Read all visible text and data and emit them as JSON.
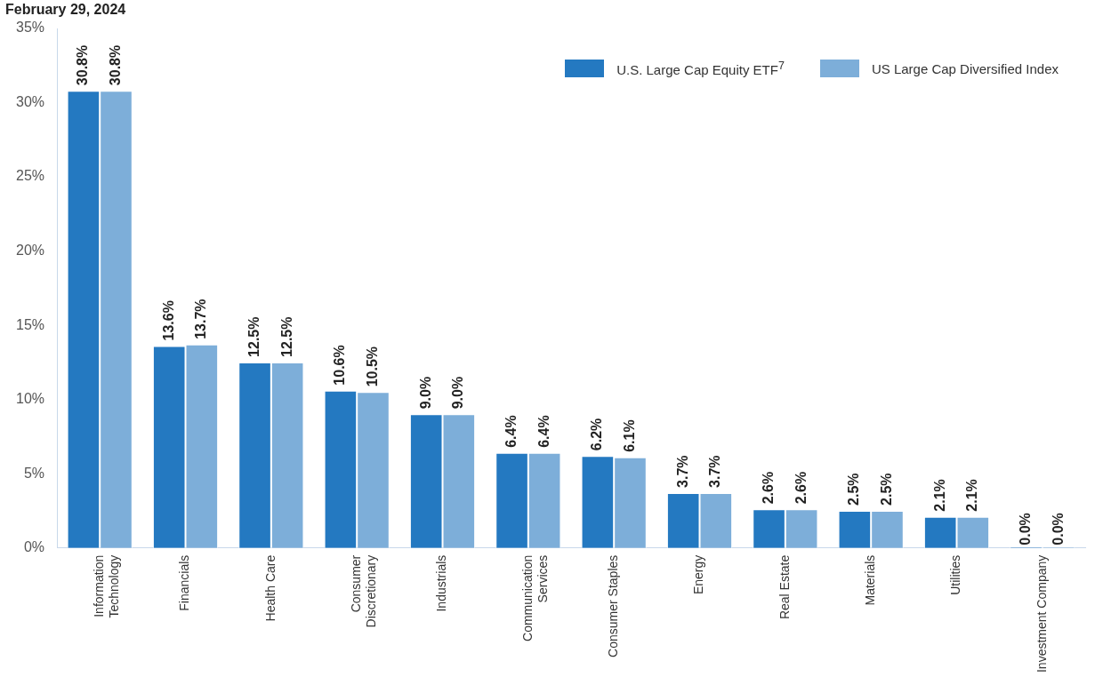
{
  "chart_data": {
    "type": "bar",
    "title": "February 29, 2024",
    "categories": [
      "Information\nTechnology",
      "Financials",
      "Health Care",
      "Consumer\nDiscretionary",
      "Industrials",
      "Communication\nServices",
      "Consumer Staples",
      "Energy",
      "Real Estate",
      "Materials",
      "Utilities",
      "Investment Company"
    ],
    "series": [
      {
        "name": "U.S. Large Cap Equity ETF$^{7}$",
        "color": "#2479c1",
        "values": [
          30.8,
          13.6,
          12.5,
          10.6,
          9.0,
          6.4,
          6.2,
          3.7,
          2.6,
          2.5,
          2.1,
          0.0
        ],
        "value_labels": [
          "30.8%",
          "13.6%",
          "12.5%",
          "10.6%",
          "9.0%",
          "6.4%",
          "6.2%",
          "3.7%",
          "2.6%",
          "2.5%",
          "2.1%",
          "0.0%"
        ]
      },
      {
        "name": "US Large Cap Diversified Index",
        "color": "#7daed9",
        "values": [
          30.8,
          13.7,
          12.5,
          10.5,
          9.0,
          6.4,
          6.1,
          3.7,
          2.6,
          2.5,
          2.1,
          0.0
        ],
        "value_labels": [
          "30.8%",
          "13.7%",
          "12.5%",
          "10.5%",
          "9.0%",
          "6.4%",
          "6.1%",
          "3.7%",
          "2.6%",
          "2.5%",
          "2.1%",
          "0.0%"
        ]
      }
    ],
    "ylim": [
      0,
      35
    ],
    "yticks": [
      {
        "value": 0,
        "label": "0%"
      },
      {
        "value": 5,
        "label": "5%"
      },
      {
        "value": 10,
        "label": "10%"
      },
      {
        "value": 15,
        "label": "15%"
      },
      {
        "value": 20,
        "label": "20%"
      },
      {
        "value": 25,
        "label": "25%"
      },
      {
        "value": 30,
        "label": "30%"
      },
      {
        "value": 35,
        "label": "35%"
      }
    ],
    "grid": false,
    "legend": "top right"
  }
}
